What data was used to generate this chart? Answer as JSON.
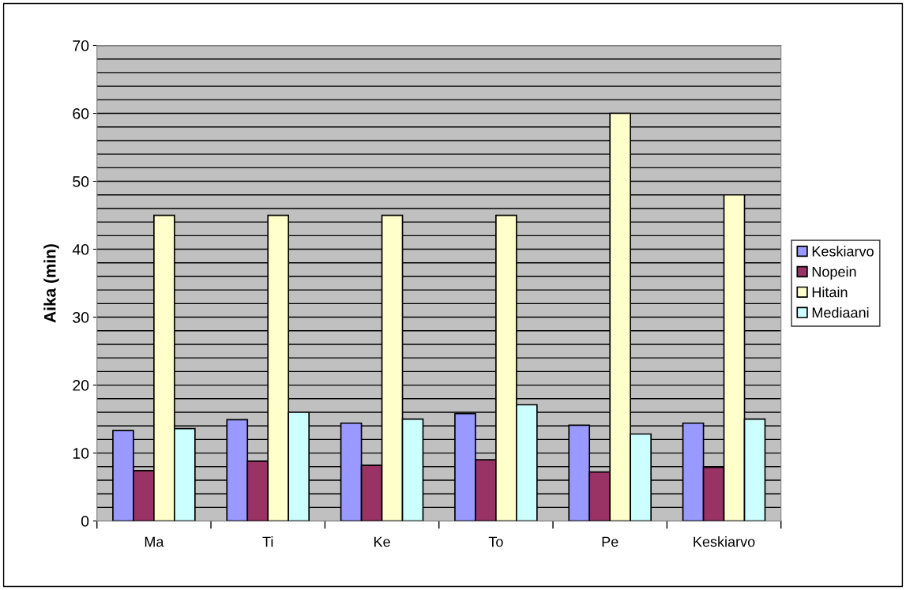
{
  "chart_data": {
    "type": "bar",
    "ylabel": "Aika (min)",
    "categories": [
      "Ma",
      "Ti",
      "Ke",
      "To",
      "Pe",
      "Keskiarvo"
    ],
    "series": [
      {
        "name": "Keskiarvo",
        "color": "#9999ff",
        "values": [
          13.3,
          14.9,
          14.4,
          15.8,
          14.1,
          14.4
        ]
      },
      {
        "name": "Nopein",
        "color": "#993366",
        "values": [
          7.4,
          8.8,
          8.2,
          9.0,
          7.2,
          7.9
        ]
      },
      {
        "name": "Hitain",
        "color": "#ffffcc",
        "values": [
          45,
          45,
          45,
          45,
          60,
          48
        ]
      },
      {
        "name": "Mediaani",
        "color": "#ccffff",
        "values": [
          13.6,
          16.0,
          15.0,
          17.1,
          12.8,
          15.0
        ]
      }
    ],
    "ylim": [
      0,
      70
    ],
    "yticks": [
      0,
      10,
      20,
      30,
      40,
      50,
      60,
      70
    ],
    "grid": "y",
    "legend": "right"
  }
}
